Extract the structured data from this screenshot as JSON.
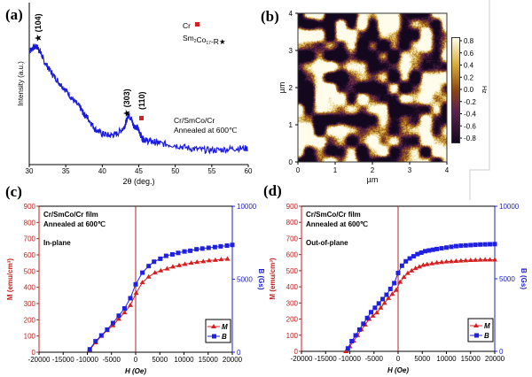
{
  "panel_labels": [
    "(a)",
    "(b)",
    "(c)",
    "(d)"
  ],
  "chart_data": [
    {
      "type": "line",
      "panel": "(a)",
      "xlabel": "2θ (deg.)",
      "ylabel": "Intensity (a.u.)",
      "xlim": [
        30,
        60
      ],
      "ylim": [
        0,
        100
      ],
      "xticks": [
        "30",
        "35",
        "40",
        "45",
        "50",
        "55",
        "60"
      ],
      "series": [
        {
          "name": "Cr/SmCo/Cr",
          "color": "#1a1adc",
          "x": [
            30,
            30.5,
            31,
            31.5,
            32,
            33,
            34,
            35,
            36,
            37,
            37.5,
            38,
            39,
            40,
            41,
            42,
            43,
            43.3,
            43.6,
            44,
            44.3,
            44.8,
            45.2,
            45.5,
            46,
            47,
            48,
            50,
            52,
            54,
            56,
            58,
            60
          ],
          "y": [
            70,
            72,
            73,
            70,
            64,
            57,
            51,
            46,
            40,
            35,
            31,
            29,
            22,
            19,
            18,
            19,
            23,
            27,
            31,
            28,
            24,
            23,
            19,
            16,
            15,
            14,
            13,
            12,
            10,
            9,
            9,
            10,
            10
          ]
        }
      ],
      "peaks": [
        {
          "label": "★ (104)"
        },
        {
          "label": "★ (303)"
        },
        {
          "label": "(110)"
        }
      ],
      "legend": [
        {
          "label": "Cr",
          "symbol": "■",
          "color": "#d42020"
        },
        {
          "label": "Sm",
          "sub1": "2",
          "mid": "Co",
          "sub2": "17",
          "tail": "-R",
          "symbol": "★"
        }
      ],
      "annotation": [
        "Cr/SmCo/Cr",
        "Annealed at 600℃"
      ]
    },
    {
      "type": "heatmap",
      "panel": "(b)",
      "xlabel": "µm",
      "ylabel": "µm",
      "xlim": [
        0,
        4
      ],
      "ylim": [
        0,
        4
      ],
      "xticks": [
        "0",
        "1",
        "2",
        "3",
        "4"
      ],
      "yticks": [
        "0",
        "1",
        "2",
        "3",
        "4"
      ],
      "colorbar": {
        "label": "Hz",
        "range": [
          -0.9,
          0.9
        ],
        "ticks": [
          "0.8",
          "0.6",
          "0.4",
          "0.2",
          "0.0",
          "-0.2",
          "-0.4",
          "-0.6",
          "-0.8"
        ]
      }
    },
    {
      "type": "line",
      "panel": "(c)",
      "xlabel": "H (Oe)",
      "ylabel": "M (emu/cm³)",
      "y2label": "B (Gs)",
      "xlim": [
        -20000,
        20000
      ],
      "ylim": [
        0,
        900
      ],
      "y2lim": [
        0,
        10000
      ],
      "xticks": [
        "-20000",
        "-15000",
        "-10000",
        "-5000",
        "0",
        "5000",
        "10000",
        "15000",
        "20000"
      ],
      "yticks": [
        "0",
        "100",
        "200",
        "300",
        "400",
        "500",
        "600",
        "700",
        "800",
        "900"
      ],
      "y2ticks": [
        "0",
        "5000",
        "10000"
      ],
      "annotation": [
        "Cr/SmCo/Cr film",
        "Annealed at 600℃",
        "In-plane"
      ],
      "series": [
        {
          "name": "M",
          "color": "#d42020",
          "marker": "triangle",
          "x": [
            -9500,
            -8300,
            -7100,
            -5900,
            -4700,
            -3500,
            -2300,
            -1100,
            100,
            1400,
            2700,
            4000,
            5200,
            6500,
            7700,
            9000,
            10200,
            11500,
            12700,
            14000,
            15200,
            16500,
            17700,
            19000
          ],
          "y": [
            15,
            60,
            100,
            135,
            165,
            205,
            245,
            290,
            365,
            430,
            465,
            490,
            503,
            515,
            527,
            535,
            543,
            550,
            556,
            560,
            565,
            568,
            572,
            575
          ]
        },
        {
          "name": "B",
          "color": "#2020e0",
          "marker": "square",
          "axis": "right",
          "x": [
            -9500,
            -8300,
            -7100,
            -5900,
            -4700,
            -3500,
            -2300,
            -1100,
            0,
            1400,
            2700,
            3800,
            5100,
            6300,
            7600,
            8800,
            10100,
            11300,
            12600,
            13800,
            15100,
            16400,
            17600,
            18900,
            20000
          ],
          "y": [
            200,
            750,
            1150,
            1550,
            2000,
            2500,
            3000,
            3700,
            4650,
            5450,
            5900,
            6200,
            6400,
            6600,
            6700,
            6800,
            6900,
            6950,
            7050,
            7100,
            7150,
            7200,
            7250,
            7300,
            7350
          ]
        }
      ]
    },
    {
      "type": "line",
      "panel": "(d)",
      "xlabel": "H (Oe)",
      "ylabel": "M (emu/cm³)",
      "y2label": "B (Gs)",
      "xlim": [
        -20000,
        20000
      ],
      "ylim": [
        0,
        900
      ],
      "y2lim": [
        0,
        10000
      ],
      "xticks": [
        "-20000",
        "-15000",
        "-10000",
        "-5000",
        "0",
        "5000",
        "10000",
        "15000",
        "20000"
      ],
      "yticks": [
        "0",
        "100",
        "200",
        "300",
        "400",
        "500",
        "600",
        "700",
        "800",
        "900"
      ],
      "y2ticks": [
        "0",
        "5000",
        "10000"
      ],
      "annotation": [
        "Cr/SmCo/Cr film",
        "Annealed at 600℃",
        "Out-of-plane"
      ],
      "series": [
        {
          "name": "M",
          "color": "#d42020",
          "marker": "triangle",
          "x": [
            -10800,
            -10000,
            -9200,
            -8400,
            -7600,
            -6800,
            -6000,
            -5200,
            -4400,
            -3600,
            -2800,
            -2000,
            -1200,
            -400,
            400,
            1200,
            2000,
            2800,
            3600,
            4400,
            5200,
            6000,
            7000,
            8000,
            9000,
            10000,
            11000,
            12000,
            13000,
            14000,
            15000,
            16000,
            17000,
            18000,
            19000,
            20000
          ],
          "y": [
            0,
            30,
            65,
            100,
            135,
            165,
            200,
            220,
            240,
            270,
            300,
            330,
            355,
            380,
            430,
            460,
            485,
            500,
            515,
            525,
            535,
            540,
            545,
            550,
            553,
            556,
            558,
            560,
            562,
            563,
            565,
            566,
            567,
            568,
            568,
            568
          ]
        },
        {
          "name": "B",
          "color": "#2020e0",
          "marker": "square",
          "axis": "right",
          "x": [
            -10400,
            -9600,
            -8800,
            -8000,
            -7200,
            -6400,
            -5600,
            -4800,
            -4000,
            -3200,
            -2400,
            -1600,
            -800,
            0,
            800,
            1600,
            2400,
            3200,
            4000,
            4800,
            5600,
            6400,
            7200,
            8000,
            9000,
            10000,
            11000,
            12000,
            13000,
            14000,
            15000,
            16000,
            17000,
            18000,
            19000,
            20000
          ],
          "y": [
            200,
            700,
            1100,
            1500,
            1900,
            2300,
            2700,
            3000,
            3300,
            3600,
            3900,
            4300,
            4700,
            5400,
            5900,
            6200,
            6400,
            6550,
            6700,
            6800,
            6900,
            6950,
            7000,
            7050,
            7100,
            7150,
            7200,
            7250,
            7280,
            7300,
            7320,
            7340,
            7360,
            7370,
            7380,
            7390
          ]
        }
      ]
    }
  ]
}
